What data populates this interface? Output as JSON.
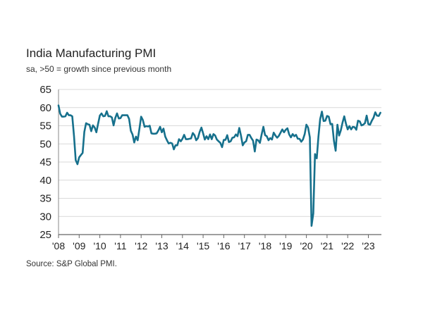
{
  "chart_data": {
    "type": "line",
    "title": "India Manufacturing PMI",
    "subtitle": "sa, >50 = growth since previous month",
    "source": "Source: S&P Global PMI.",
    "xlabel": "",
    "ylabel": "",
    "ylim": [
      25,
      65
    ],
    "yticks": [
      "25",
      "30",
      "35",
      "40",
      "45",
      "50",
      "55",
      "60",
      "65"
    ],
    "xticks": [
      "'08",
      "'09",
      "'10",
      "'11",
      "'12",
      "'13",
      "'14",
      "'15",
      "'16",
      "'17",
      "'18",
      "'19",
      "'20",
      "'21",
      "'22",
      "'23"
    ],
    "x_start": "2008-01",
    "x_frequency": "monthly",
    "grid": true,
    "line_color": "#16708c",
    "series": [
      {
        "values": [
          60.6,
          58.3,
          57.5,
          57.5,
          57.6,
          58.6,
          57.9,
          57.9,
          57.6,
          52.1,
          45.5,
          44.4,
          46.3,
          46.9,
          47.5,
          53.3,
          55.7,
          55.4,
          55.3,
          53.5,
          55.1,
          54.5,
          53.2,
          55.6,
          57.8,
          58.4,
          57.6,
          57.7,
          59.0,
          57.6,
          57.6,
          57.3,
          55.1,
          57.2,
          58.4,
          57.0,
          57.1,
          57.9,
          57.9,
          57.9,
          57.9,
          56.9,
          53.6,
          52.6,
          50.4,
          52.0,
          51.0,
          54.2,
          57.5,
          56.6,
          54.7,
          54.9,
          54.8,
          55.0,
          52.9,
          52.8,
          52.8,
          52.9,
          53.7,
          54.7,
          53.2,
          54.2,
          52.0,
          51.0,
          50.1,
          50.3,
          50.1,
          48.5,
          49.6,
          49.6,
          51.3,
          50.7,
          51.4,
          52.5,
          51.3,
          51.3,
          51.4,
          51.5,
          53.0,
          52.4,
          51.0,
          51.6,
          53.3,
          54.5,
          52.9,
          51.2,
          52.1,
          51.3,
          52.6,
          51.3,
          52.7,
          52.3,
          51.2,
          50.7,
          50.3,
          49.1,
          51.1,
          51.1,
          52.4,
          50.5,
          50.7,
          51.7,
          51.8,
          52.6,
          52.1,
          54.4,
          52.3,
          49.6,
          50.4,
          50.7,
          52.5,
          52.5,
          51.6,
          50.9,
          47.9,
          51.2,
          51.0,
          50.3,
          52.6,
          54.7,
          52.4,
          52.1,
          51.0,
          51.6,
          51.2,
          53.1,
          52.3,
          51.7,
          52.2,
          53.1,
          54.0,
          53.2,
          53.9,
          54.3,
          52.6,
          51.8,
          52.7,
          52.1,
          52.5,
          51.4,
          51.4,
          50.6,
          51.2,
          52.7,
          55.3,
          54.5,
          51.8,
          27.4,
          30.8,
          47.2,
          46.0,
          52.0,
          56.8,
          58.9,
          56.3,
          56.4,
          57.7,
          57.5,
          55.4,
          55.5,
          50.8,
          48.1,
          55.3,
          52.3,
          53.7,
          55.9,
          57.6,
          55.5,
          54.0,
          54.9,
          54.0,
          54.7,
          54.6,
          53.9,
          56.4,
          56.2,
          55.1,
          55.3,
          55.7,
          57.8,
          55.4,
          55.3,
          56.4,
          57.2,
          58.7,
          57.8,
          57.7,
          58.6
        ]
      }
    ]
  }
}
